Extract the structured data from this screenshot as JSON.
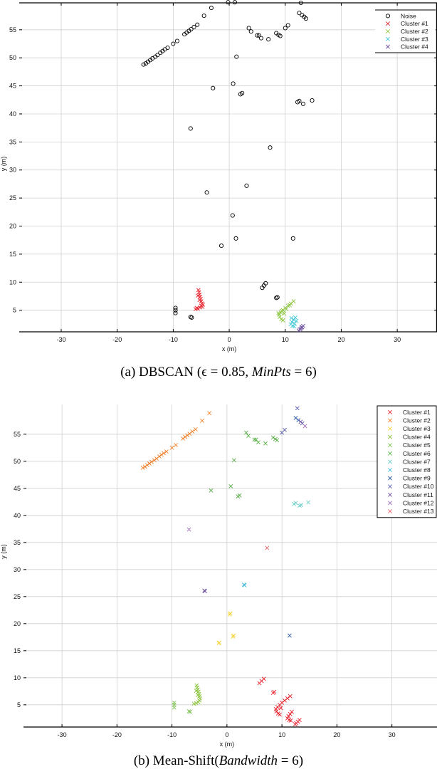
{
  "chart_data": [
    {
      "type": "scatter",
      "title": "",
      "caption": "(a) DBSCAN (ε = 0.85, MinPts = 6)",
      "caption_parts": {
        "prefix": "(a) DBSCAN (",
        "eps": "ϵ = 0.85, ",
        "minpts_var": "MinPts",
        "minpts_val": " = 6)"
      },
      "xlabel": "x (m)",
      "ylabel": "y (m)",
      "xlim": [
        -37.5,
        37.1
      ],
      "ylim": [
        1.15,
        59.8
      ],
      "xticks": [
        -30,
        -20,
        -10,
        0,
        10,
        20,
        30
      ],
      "yticks": [
        5,
        10,
        15,
        20,
        25,
        30,
        35,
        40,
        45,
        50,
        55
      ],
      "grid": true,
      "legend_position": "upper right",
      "series": [
        {
          "name": "Noise",
          "marker": "o",
          "color": "#000000",
          "points": [
            [
              -15.3,
              48.8
            ],
            [
              -14.9,
              49.0
            ],
            [
              -14.5,
              49.3
            ],
            [
              -14.1,
              49.6
            ],
            [
              -13.7,
              49.9
            ],
            [
              -13.2,
              50.2
            ],
            [
              -12.8,
              50.5
            ],
            [
              -12.3,
              50.9
            ],
            [
              -11.9,
              51.2
            ],
            [
              -11.5,
              51.5
            ],
            [
              -11.0,
              51.8
            ],
            [
              -10.0,
              52.5
            ],
            [
              -9.3,
              53.0
            ],
            [
              -8.0,
              54.2
            ],
            [
              -7.6,
              54.5
            ],
            [
              -7.2,
              54.8
            ],
            [
              -6.8,
              55.1
            ],
            [
              -6.3,
              55.5
            ],
            [
              -5.7,
              55.9
            ],
            [
              -4.5,
              57.5
            ],
            [
              -3.2,
              58.9
            ],
            [
              -0.2,
              59.9
            ],
            [
              1.0,
              59.9
            ],
            [
              -2.9,
              44.6
            ],
            [
              -6.9,
              37.4
            ],
            [
              0.7,
              45.4
            ],
            [
              1.3,
              50.2
            ],
            [
              2.0,
              43.5
            ],
            [
              2.3,
              43.7
            ],
            [
              3.5,
              55.3
            ],
            [
              3.9,
              54.7
            ],
            [
              5.0,
              54.0
            ],
            [
              5.3,
              54.0
            ],
            [
              5.7,
              53.5
            ],
            [
              7.0,
              53.3
            ],
            [
              8.4,
              54.4
            ],
            [
              8.8,
              54.1
            ],
            [
              9.1,
              53.9
            ],
            [
              10.0,
              55.3
            ],
            [
              10.5,
              55.8
            ],
            [
              12.5,
              58.0
            ],
            [
              13.0,
              57.6
            ],
            [
              13.4,
              57.3
            ],
            [
              13.7,
              57.0
            ],
            [
              12.8,
              59.8
            ],
            [
              12.2,
              42.1
            ],
            [
              12.5,
              42.3
            ],
            [
              13.2,
              41.8
            ],
            [
              14.8,
              42.4
            ],
            [
              7.3,
              34.0
            ],
            [
              -4.0,
              26.0
            ],
            [
              3.1,
              27.2
            ],
            [
              0.6,
              21.9
            ],
            [
              1.2,
              17.8
            ],
            [
              -1.4,
              16.5
            ],
            [
              11.4,
              17.8
            ],
            [
              -9.6,
              4.5
            ],
            [
              -9.6,
              5.0
            ],
            [
              -9.6,
              5.4
            ],
            [
              -6.7,
              3.7
            ],
            [
              -6.9,
              3.8
            ],
            [
              5.9,
              9.0
            ],
            [
              6.2,
              9.4
            ],
            [
              6.5,
              9.8
            ],
            [
              8.4,
              7.2
            ],
            [
              8.6,
              7.3
            ]
          ]
        },
        {
          "name": "Cluster #1",
          "marker": "x",
          "color": "#e8202a",
          "points": [
            [
              -5.5,
              8.6
            ],
            [
              -5.4,
              8.2
            ],
            [
              -5.3,
              7.8
            ],
            [
              -5.2,
              7.4
            ],
            [
              -5.1,
              7.0
            ],
            [
              -5.0,
              6.6
            ],
            [
              -4.9,
              6.2
            ],
            [
              -5.0,
              5.8
            ],
            [
              -5.2,
              5.5
            ],
            [
              -5.6,
              5.3
            ],
            [
              -6.0,
              5.2
            ],
            [
              -4.8,
              5.6
            ],
            [
              -5.3,
              6.8
            ],
            [
              -5.6,
              7.6
            ],
            [
              -4.7,
              6.0
            ],
            [
              -5.8,
              5.4
            ]
          ]
        },
        {
          "name": "Cluster #2",
          "marker": "x",
          "color": "#8cc63f",
          "points": [
            [
              11.5,
              6.6
            ],
            [
              11.0,
              6.2
            ],
            [
              10.5,
              5.8
            ],
            [
              10.0,
              5.4
            ],
            [
              9.6,
              5.0
            ],
            [
              9.2,
              4.6
            ],
            [
              8.9,
              4.2
            ],
            [
              9.0,
              3.8
            ],
            [
              9.3,
              3.4
            ],
            [
              9.6,
              3.2
            ],
            [
              9.8,
              4.4
            ],
            [
              10.2,
              5.2
            ],
            [
              10.8,
              5.9
            ],
            [
              9.4,
              4.9
            ],
            [
              8.8,
              4.5
            ]
          ]
        },
        {
          "name": "Cluster #3",
          "marker": "x",
          "color": "#44c8d8",
          "points": [
            [
              11.8,
              3.7
            ],
            [
              11.5,
              3.3
            ],
            [
              11.2,
              2.9
            ],
            [
              11.0,
              2.5
            ],
            [
              11.3,
              2.2
            ],
            [
              11.6,
              2.1
            ],
            [
              12.0,
              3.1
            ],
            [
              11.1,
              3.6
            ],
            [
              11.7,
              2.6
            ]
          ]
        },
        {
          "name": "Cluster #4",
          "marker": "x",
          "color": "#6a4c9c",
          "points": [
            [
              13.2,
              2.2
            ],
            [
              12.9,
              1.9
            ],
            [
              12.6,
              1.6
            ],
            [
              12.4,
              1.4
            ],
            [
              12.8,
              1.7
            ],
            [
              13.0,
              2.0
            ]
          ]
        }
      ]
    },
    {
      "type": "scatter",
      "title": "",
      "caption": "(b) Mean-Shift(Bandwidth = 6)",
      "caption_parts": {
        "prefix": "(b) Mean-Shift(",
        "bw_var": "Bandwidth",
        "bw_val": " = 6)"
      },
      "xlabel": "x (m)",
      "ylabel": "y (m)",
      "xlim": [
        -37.0,
        38.2
      ],
      "ylim": [
        0.9,
        60.5
      ],
      "xticks": [
        -30,
        -20,
        -10,
        0,
        10,
        20,
        30
      ],
      "yticks": [
        5,
        10,
        15,
        20,
        25,
        30,
        35,
        40,
        45,
        50,
        55
      ],
      "grid": true,
      "legend_position": "upper right",
      "series": [
        {
          "name": "Cluster #1",
          "marker": "x",
          "color": "#e8202a",
          "points": [
            [
              6.7,
              9.8
            ],
            [
              6.3,
              9.4
            ],
            [
              5.9,
              9.0
            ],
            [
              8.4,
              7.2
            ],
            [
              8.6,
              7.4
            ],
            [
              11.5,
              6.6
            ],
            [
              11.0,
              6.2
            ],
            [
              10.5,
              5.8
            ],
            [
              10.0,
              5.4
            ],
            [
              9.6,
              5.0
            ],
            [
              9.2,
              4.6
            ],
            [
              8.9,
              4.2
            ],
            [
              9.0,
              3.8
            ],
            [
              9.3,
              3.4
            ],
            [
              9.6,
              3.2
            ],
            [
              9.8,
              4.4
            ],
            [
              11.8,
              3.7
            ],
            [
              11.5,
              3.3
            ],
            [
              11.2,
              2.9
            ],
            [
              11.0,
              2.5
            ],
            [
              11.3,
              2.2
            ],
            [
              11.6,
              2.1
            ],
            [
              13.2,
              2.2
            ],
            [
              12.9,
              1.9
            ],
            [
              12.6,
              1.6
            ],
            [
              12.4,
              1.4
            ]
          ]
        },
        {
          "name": "Cluster #2",
          "marker": "x",
          "color": "#f07f2a",
          "points": [
            [
              -15.3,
              48.8
            ],
            [
              -14.9,
              49.0
            ],
            [
              -14.5,
              49.3
            ],
            [
              -14.1,
              49.6
            ],
            [
              -13.7,
              49.9
            ],
            [
              -13.2,
              50.2
            ],
            [
              -12.8,
              50.5
            ],
            [
              -12.3,
              50.9
            ],
            [
              -11.9,
              51.2
            ],
            [
              -11.5,
              51.5
            ],
            [
              -11.0,
              51.8
            ],
            [
              -10.0,
              52.5
            ],
            [
              -9.3,
              53.0
            ],
            [
              -8.0,
              54.2
            ],
            [
              -7.6,
              54.5
            ],
            [
              -7.2,
              54.8
            ],
            [
              -6.8,
              55.1
            ],
            [
              -6.3,
              55.5
            ],
            [
              -5.7,
              55.9
            ],
            [
              -4.5,
              57.5
            ],
            [
              -3.2,
              58.9
            ]
          ]
        },
        {
          "name": "Cluster #3",
          "marker": "x",
          "color": "#f5d33a",
          "points": [
            [
              0.6,
              21.9
            ],
            [
              0.5,
              21.7
            ],
            [
              1.2,
              17.8
            ],
            [
              1.1,
              17.6
            ],
            [
              -1.4,
              16.5
            ],
            [
              -1.5,
              16.4
            ]
          ]
        },
        {
          "name": "Cluster #4",
          "marker": "x",
          "color": "#8cc63f",
          "points": [
            [
              -5.5,
              8.6
            ],
            [
              -5.4,
              8.2
            ],
            [
              -5.3,
              7.8
            ],
            [
              -5.2,
              7.4
            ],
            [
              -5.1,
              7.0
            ],
            [
              -5.0,
              6.6
            ],
            [
              -4.9,
              6.2
            ],
            [
              -5.0,
              5.8
            ],
            [
              -5.2,
              5.5
            ],
            [
              -5.6,
              5.3
            ],
            [
              -6.0,
              5.2
            ],
            [
              -5.3,
              6.8
            ],
            [
              -5.6,
              7.6
            ]
          ]
        },
        {
          "name": "Cluster #5",
          "marker": "x",
          "color": "#7cc050",
          "points": [
            [
              -9.6,
              4.5
            ],
            [
              -9.6,
              5.0
            ],
            [
              -9.6,
              5.4
            ],
            [
              -6.7,
              3.7
            ],
            [
              -6.9,
              3.8
            ]
          ]
        },
        {
          "name": "Cluster #6",
          "marker": "x",
          "color": "#5bb04a",
          "points": [
            [
              -2.9,
              44.6
            ],
            [
              0.7,
              45.4
            ],
            [
              1.3,
              50.2
            ],
            [
              2.0,
              43.5
            ],
            [
              2.3,
              43.7
            ],
            [
              3.5,
              55.3
            ],
            [
              3.9,
              54.7
            ],
            [
              5.0,
              54.0
            ],
            [
              5.3,
              54.0
            ],
            [
              5.7,
              53.5
            ],
            [
              7.0,
              53.3
            ],
            [
              8.4,
              54.4
            ],
            [
              8.8,
              54.1
            ],
            [
              9.1,
              53.9
            ]
          ]
        },
        {
          "name": "Cluster #7",
          "marker": "x",
          "color": "#6fd0c8",
          "points": [
            [
              12.2,
              42.1
            ],
            [
              12.5,
              42.3
            ],
            [
              13.2,
              41.8
            ],
            [
              13.5,
              41.9
            ],
            [
              14.8,
              42.4
            ]
          ]
        },
        {
          "name": "Cluster #8",
          "marker": "x",
          "color": "#44b8d8",
          "points": [
            [
              3.1,
              27.2
            ],
            [
              3.2,
              27.1
            ]
          ]
        },
        {
          "name": "Cluster #9",
          "marker": "x",
          "color": "#2a5aa8",
          "points": [
            [
              11.4,
              17.8
            ],
            [
              12.5,
              58.0
            ],
            [
              13.0,
              57.6
            ]
          ]
        },
        {
          "name": "Cluster #10",
          "marker": "x",
          "color": "#5a5ca8",
          "points": [
            [
              10.0,
              55.3
            ],
            [
              10.5,
              55.8
            ],
            [
              12.8,
              59.8
            ],
            [
              13.7,
              57.0
            ]
          ]
        },
        {
          "name": "Cluster #11",
          "marker": "x",
          "color": "#6a4c9c",
          "points": [
            [
              -4.0,
              26.0
            ],
            [
              -4.1,
              26.1
            ],
            [
              13.4,
              57.3
            ]
          ]
        },
        {
          "name": "Cluster #12",
          "marker": "x",
          "color": "#a070b8",
          "points": [
            [
              -6.9,
              37.4
            ],
            [
              14.2,
              56.5
            ]
          ]
        },
        {
          "name": "Cluster #13",
          "marker": "x",
          "color": "#e8606a",
          "points": [
            [
              7.3,
              34.0
            ]
          ]
        }
      ]
    }
  ],
  "panels": [
    {
      "caption_prefix": "(a) DBSCAN (",
      "caption_math": "ϵ = 0.85, ",
      "caption_var": "MinPts",
      "caption_suffix": " = 6)"
    },
    {
      "caption_prefix": "(b) Mean-Shift(",
      "caption_math": "",
      "caption_var": "Bandwidth",
      "caption_suffix": " = 6)"
    }
  ]
}
